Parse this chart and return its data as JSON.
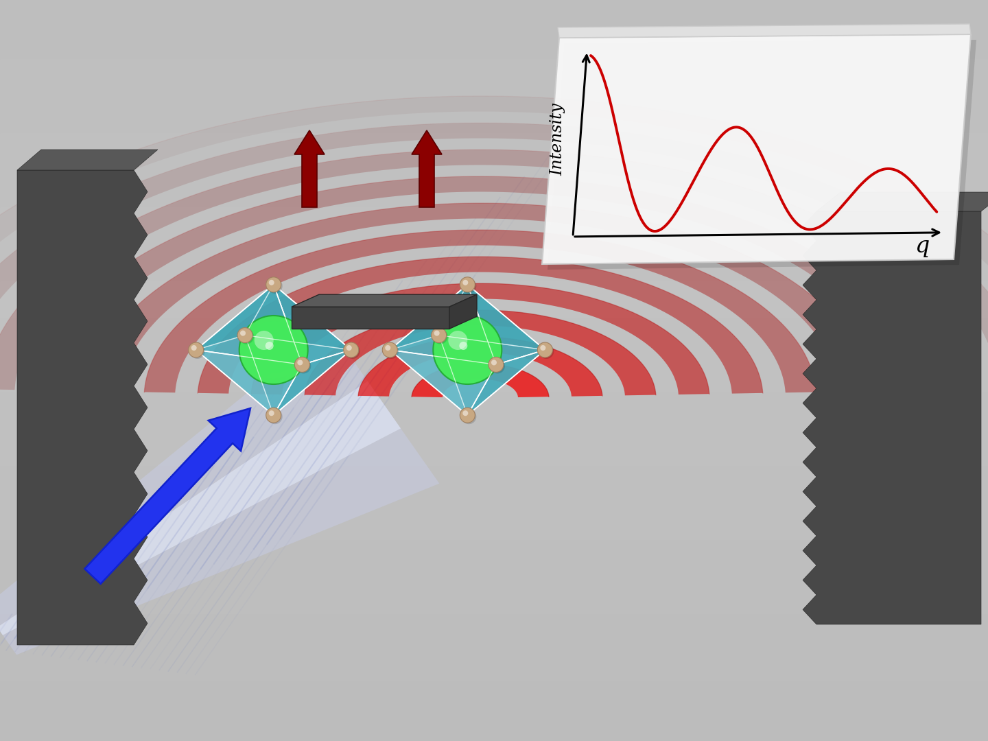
{
  "bg_color": "#c2c2c2",
  "barrier_dark": "#3a3a3a",
  "barrier_mid": "#484848",
  "barrier_light": "#585858",
  "crystal_teal": "#4db8c0",
  "crystal_teal_dark": "#2a8a92",
  "crystal_teal_light": "#7ad4dc",
  "crystal_alpha": 0.78,
  "atom_tan": "#c8a882",
  "atom_tan_dark": "#a08060",
  "ir_green": "#44ee55",
  "ir_green_dark": "#22aa33",
  "ir_green_light": "#88ff88",
  "red_wave": "#cc0000",
  "red_wave_fill": "#dd2020",
  "blue_arrow": "#2233ee",
  "blue_arrow_dark": "#1122cc",
  "dark_red_arrow": "#8b0000",
  "incoming_wave_color": [
    0.62,
    0.65,
    0.82
  ],
  "graph_bg": "#f7f7f7",
  "graph_line": "#cc0000",
  "slit_bar": "#404040",
  "slit_bar_top": "#565656"
}
